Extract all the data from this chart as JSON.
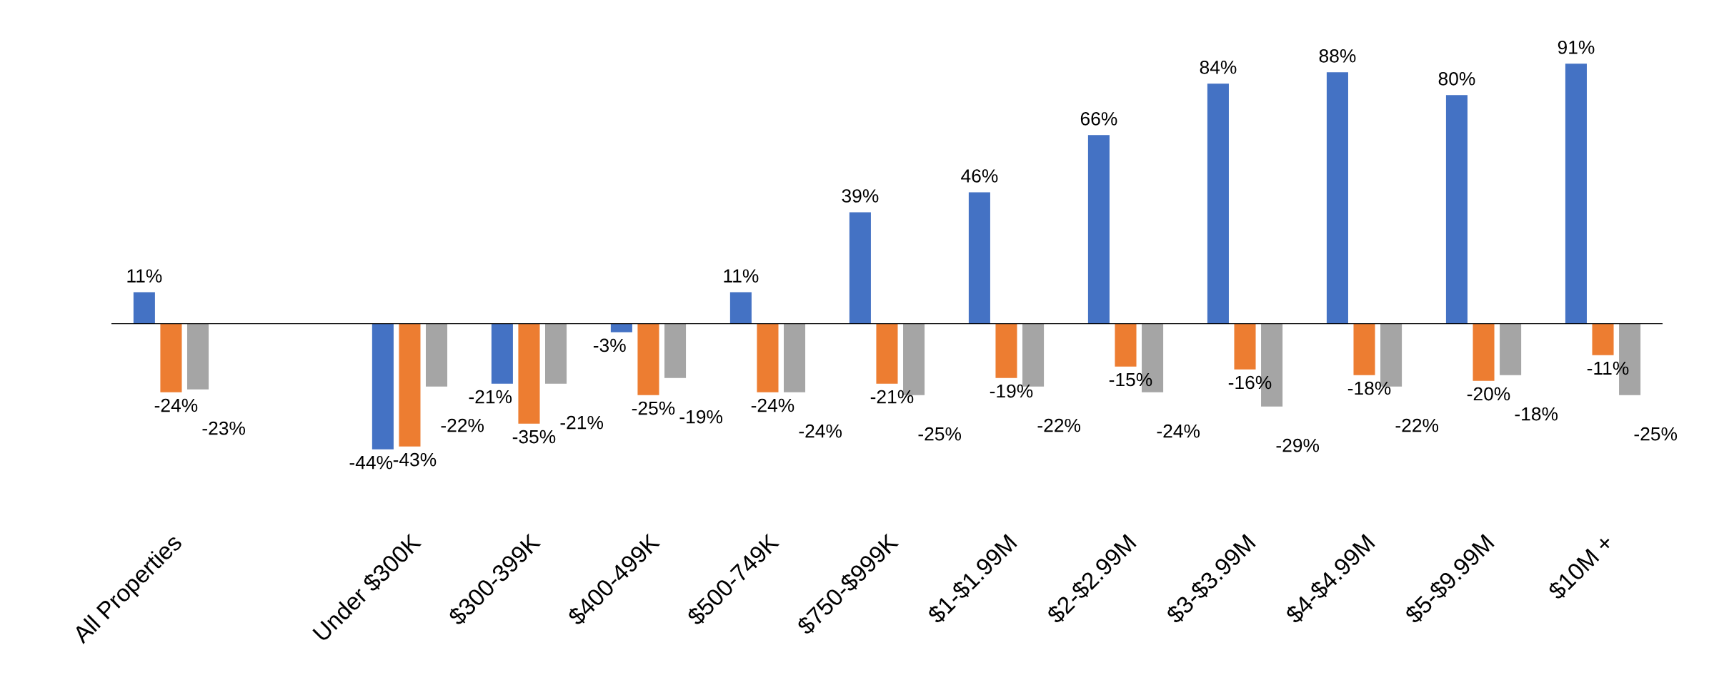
{
  "chart_data": {
    "type": "bar",
    "categories": [
      "All Properties",
      null,
      "Under $300K",
      "$300-399K",
      "$400-499K",
      "$500-749K",
      "$750-$999K",
      "$1-$1.99M",
      "$2-$2.99M",
      "$3-$3.99M",
      "$4-$4.99M",
      "$5-$9.99M",
      "$10M +"
    ],
    "series": [
      {
        "color": "#4472c4",
        "values": [
          11,
          null,
          -44,
          -21,
          -3,
          11,
          39,
          46,
          66,
          84,
          88,
          80,
          91
        ],
        "value_labels": [
          "11%",
          null,
          "-44%",
          "-21%",
          "-3%",
          "11%",
          "39%",
          "46%",
          "66%",
          "84%",
          "88%",
          "80%",
          "91%"
        ]
      },
      {
        "color": "#ed7d31",
        "values": [
          -24,
          null,
          -43,
          -35,
          -25,
          -24,
          -21,
          -19,
          -15,
          -16,
          -18,
          -20,
          -11
        ],
        "value_labels": [
          "-24%",
          null,
          "-43%",
          "-35%",
          "-25%",
          "-24%",
          "-21%",
          "-19%",
          "-15%",
          "-16%",
          "-18%",
          "-20%",
          "-11%"
        ]
      },
      {
        "color": "#a5a5a5",
        "values": [
          -23,
          null,
          -22,
          -21,
          -19,
          -24,
          -25,
          -22,
          -24,
          -29,
          -22,
          -18,
          -25
        ],
        "value_labels": [
          "-23%",
          null,
          "-22%",
          "-21%",
          "-19%",
          "-24%",
          "-25%",
          "-22%",
          "-24%",
          "-29%",
          "-22%",
          "-18%",
          "-25%"
        ]
      }
    ]
  }
}
